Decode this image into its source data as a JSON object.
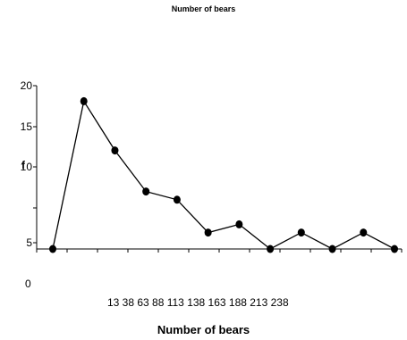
{
  "chart_data": {
    "type": "line",
    "title": "Number of bears",
    "xlabel": "Number of bears",
    "ylabel": "f",
    "ytick_labels": [
      "5",
      "10",
      "15",
      "20"
    ],
    "y_zero_label": "0",
    "xtick_labels_text": "13 38 63 88 113 138 163 188 213 238",
    "ylim": [
      0,
      20
    ],
    "series": [
      {
        "values": [
          0,
          18,
          12,
          7,
          6,
          2,
          3,
          0,
          2,
          0,
          2,
          0
        ]
      }
    ]
  }
}
